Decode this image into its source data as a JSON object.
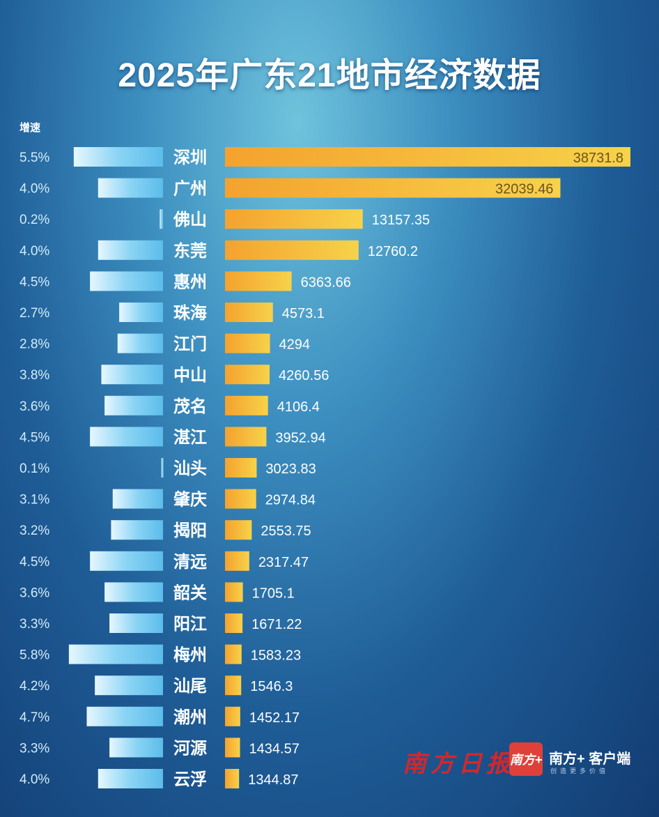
{
  "chart_data": {
    "type": "bar",
    "title": "2025年广东21地市经济数据",
    "growth_label": "增速",
    "categories": [
      "深圳",
      "广州",
      "佛山",
      "东莞",
      "惠州",
      "珠海",
      "江门",
      "中山",
      "茂名",
      "湛江",
      "汕头",
      "肇庆",
      "揭阳",
      "清远",
      "韶关",
      "阳江",
      "梅州",
      "汕尾",
      "潮州",
      "河源",
      "云浮"
    ],
    "series": [
      {
        "key": "gdp",
        "values": [
          38731.8,
          32039.46,
          13157.35,
          12760.2,
          6363.66,
          4573.1,
          4294,
          4260.56,
          4106.4,
          3952.94,
          3023.83,
          2974.84,
          2553.75,
          2317.47,
          1705.1,
          1671.22,
          1583.23,
          1546.3,
          1452.17,
          1434.57,
          1344.87
        ],
        "labels": [
          "38731.8",
          "32039.46",
          "13157.35",
          "12760.2",
          "6363.66",
          "4573.1",
          "4294",
          "4260.56",
          "4106.4",
          "3952.94",
          "3023.83",
          "2974.84",
          "2553.75",
          "2317.47",
          "1705.1",
          "1671.22",
          "1583.23",
          "1546.3",
          "1452.17",
          "1434.57",
          "1344.87"
        ],
        "color": "#f5b83a"
      },
      {
        "key": "growth",
        "values": [
          5.5,
          4.0,
          0.2,
          4.0,
          4.5,
          2.7,
          2.8,
          3.8,
          3.6,
          4.5,
          0.1,
          3.1,
          3.2,
          4.5,
          3.6,
          3.3,
          5.8,
          4.2,
          4.7,
          3.3,
          4.0
        ],
        "labels": [
          "5.5%",
          "4.0%",
          "0.2%",
          "4.0%",
          "4.5%",
          "2.7%",
          "2.8%",
          "3.8%",
          "3.6%",
          "4.5%",
          "0.1%",
          "3.1%",
          "3.2%",
          "4.5%",
          "3.6%",
          "3.3%",
          "5.8%",
          "4.2%",
          "4.7%",
          "3.3%",
          "4.0%"
        ],
        "color": "#6cc6ef"
      }
    ]
  },
  "branding": {
    "newspaper": "南方日报",
    "app_icon": "南方+",
    "app_name": "南方+ 客户端",
    "app_slogan": "创造更多价值"
  }
}
